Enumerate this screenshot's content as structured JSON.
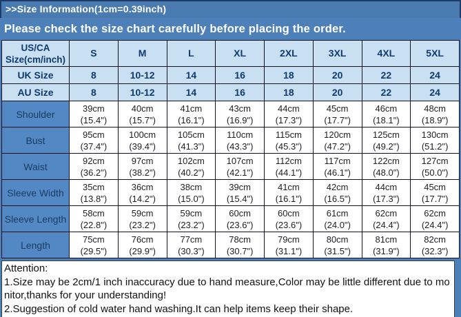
{
  "banner": {
    "title": ">>Size Information(1cm=0.39inch)",
    "subtitle": "Please check the size chart carefully before placing the order."
  },
  "chart_data": {
    "type": "table",
    "title": "Size Information(1cm=0.39inch)",
    "columns": [
      "US/CA\nSize(cm/inch)",
      "S",
      "M",
      "L",
      "XL",
      "2XL",
      "3XL",
      "4XL",
      "5XL"
    ],
    "rows": [
      {
        "kind": "conversion",
        "label": "UK Size",
        "cells": [
          "8",
          "10-12",
          "14",
          "16",
          "18",
          "20",
          "22",
          "24"
        ]
      },
      {
        "kind": "conversion",
        "label": "AU Size",
        "cells": [
          "8",
          "10-12",
          "14",
          "16",
          "18",
          "20",
          "22",
          "24"
        ]
      },
      {
        "kind": "measurement",
        "label": "Shoulder",
        "cells": [
          "39cm\n(15.4\")",
          "40cm\n(15.7\")",
          "41cm\n(16.1\")",
          "43cm\n(16.9\")",
          "44cm\n(17.3\")",
          "45cm\n(17.7\")",
          "46cm\n(18.1\")",
          "48cm\n(18.9\")"
        ]
      },
      {
        "kind": "measurement",
        "label": "Bust",
        "cells": [
          "95cm\n(37.4\")",
          "100cm\n(39.4\")",
          "105cm\n(41.3\")",
          "110cm\n(43.3\")",
          "115cm\n(45.3\")",
          "120cm\n(47.2\")",
          "125cm\n(49.2\")",
          "130cm\n(51.2\")"
        ]
      },
      {
        "kind": "measurement",
        "label": "Waist",
        "cells": [
          "92cm\n(36.2\")",
          "97cm\n(38.2\")",
          "102cm\n(40.2\")",
          "107cm\n(42.1\")",
          "112cm\n(44.1\")",
          "117cm\n(46.1\")",
          "122cm\n(48.0\")",
          "127cm\n(50.0\")"
        ]
      },
      {
        "kind": "measurement",
        "label": "Sleeve Width",
        "cells": [
          "35cm\n(13.8\")",
          "36cm\n(14.2\")",
          "38cm\n(15.0\")",
          "39cm\n(15.4\")",
          "41cm\n(16.1\")",
          "42cm\n(16.5\")",
          "44cm\n(17.3\")",
          "45cm\n(17.7\")"
        ]
      },
      {
        "kind": "measurement",
        "label": "Sleeve Length",
        "cells": [
          "58cm\n(22.8\")",
          "59cm\n(23.2\")",
          "59cm\n(23.2\")",
          "60cm\n(23.6\")",
          "60cm\n(23.6\")",
          "61cm\n(24.0\")",
          "62cm\n(24.4\")",
          "62cm\n(24.4\")"
        ]
      },
      {
        "kind": "measurement",
        "label": "Length",
        "cells": [
          "75cm\n(29.5\")",
          "76cm\n(29.9\")",
          "77cm\n(30.3\")",
          "78cm\n(30.7\")",
          "79cm\n(31.1\")",
          "80cm\n(31.5\")",
          "81cm\n(31.9\")",
          "82cm\n(32.3\")"
        ]
      }
    ]
  },
  "attention": {
    "heading": "Attention:",
    "lines": [
      "1.Size may be 2cm/1 inch inaccuracy due to hand measure,Color may be little different due to monitor,thanks for your understanding!",
      "2.Suggestion of cold water hand washing.It can help items keep their shape."
    ]
  },
  "colors": {
    "page_background": "#4d80b9",
    "banner_border": "#1d3b66",
    "banner_text": "#ffffff",
    "header_cell_background": "#c9e0f2",
    "header_text": "#0e3a70",
    "row_label_background": "#5289c4",
    "row_label_text": "#1b3a5e",
    "table_border": "#10101e",
    "data_cell_background": "#ffffff"
  }
}
